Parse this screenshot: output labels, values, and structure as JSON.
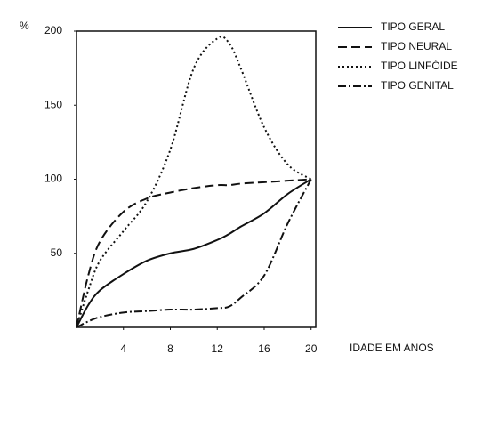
{
  "chart_data": {
    "type": "line",
    "y_label": "%",
    "x_label": "IDADE EM ANOS",
    "x": [
      0,
      1,
      2,
      4,
      6,
      8,
      10,
      12,
      13,
      14,
      16,
      18,
      20
    ],
    "series": [
      {
        "name": "TIPO GERAL",
        "color": "#111111",
        "style": "solid",
        "values": [
          0,
          15,
          25,
          36,
          45,
          50,
          53,
          59,
          63,
          68,
          77,
          90,
          100
        ]
      },
      {
        "name": "TIPO NEURAL",
        "color": "#111111",
        "style": "dashed",
        "values": [
          0,
          35,
          58,
          78,
          87,
          91,
          94,
          96,
          96,
          97,
          98,
          99,
          100
        ]
      },
      {
        "name": "TIPO LINFÓIDE",
        "color": "#111111",
        "style": "dotted",
        "values": [
          0,
          25,
          45,
          65,
          85,
          120,
          175,
          195,
          192,
          175,
          135,
          110,
          100
        ]
      },
      {
        "name": "TIPO GENITAL",
        "color": "#111111",
        "style": "dashdot",
        "values": [
          0,
          4,
          7,
          10,
          11,
          12,
          12,
          13,
          14,
          20,
          35,
          70,
          100
        ]
      }
    ],
    "xlim": [
      0,
      20.4
    ],
    "xticks": [
      4,
      8,
      12,
      16,
      20
    ],
    "ylim": [
      0,
      200
    ],
    "yticks": [
      50,
      100,
      150,
      200
    ]
  }
}
